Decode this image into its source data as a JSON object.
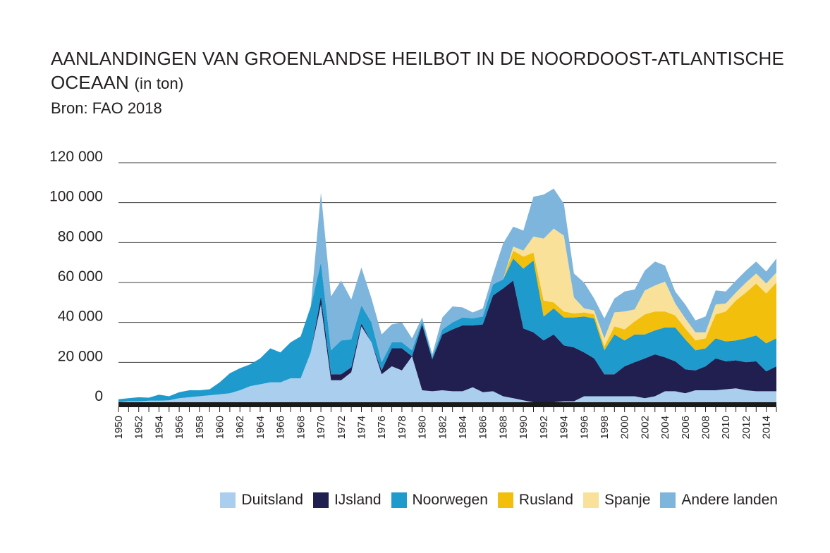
{
  "header": {
    "title_main": "AANLANDINGEN VAN GROENLANDSE HEILBOT IN DE NOORDOOST-ATLANTISCHE OCEAAN",
    "title_unit": "(in ton)",
    "source": "Bron: FAO 2018"
  },
  "legend": {
    "items": [
      {
        "label": "Duitsland",
        "color": "#aacfee"
      },
      {
        "label": "IJsland",
        "color": "#211e50"
      },
      {
        "label": "Noorwegen",
        "color": "#1e9acd"
      },
      {
        "label": "Rusland",
        "color": "#f2bf0d"
      },
      {
        "label": "Spanje",
        "color": "#f9e19a"
      },
      {
        "label": "Andere landen",
        "color": "#7db5dc"
      }
    ]
  },
  "chart_data": {
    "type": "area",
    "stacked": true,
    "title": "AANLANDINGEN VAN GROENLANDSE HEILBOT IN DE NOORDOOST-ATLANTISCHE OCEAAN (in ton)",
    "xlabel": "",
    "ylabel": "",
    "ylim": [
      0,
      120000
    ],
    "yticks": [
      0,
      20000,
      40000,
      60000,
      80000,
      100000,
      120000
    ],
    "ytick_labels": [
      "0",
      "20 000",
      "40 000",
      "60 000",
      "80 000",
      "100 000",
      "120 000"
    ],
    "xtick_labels": [
      "1950",
      "1952",
      "1954",
      "1956",
      "1958",
      "1960",
      "1962",
      "1964",
      "1966",
      "1968",
      "1970",
      "1972",
      "1974",
      "1976",
      "1978",
      "1980",
      "1982",
      "1984",
      "1986",
      "1988",
      "1990",
      "1992",
      "1994",
      "1996",
      "1998",
      "2000",
      "2002",
      "2004",
      "2006",
      "2008",
      "2010",
      "2012",
      "2014"
    ],
    "grid": true,
    "legend_position": "bottom-right",
    "x": [
      1950,
      1951,
      1952,
      1953,
      1954,
      1955,
      1956,
      1957,
      1958,
      1959,
      1960,
      1961,
      1962,
      1963,
      1964,
      1965,
      1966,
      1967,
      1968,
      1969,
      1970,
      1971,
      1972,
      1973,
      1974,
      1975,
      1976,
      1977,
      1978,
      1979,
      1980,
      1981,
      1982,
      1983,
      1984,
      1985,
      1986,
      1987,
      1988,
      1989,
      1990,
      1991,
      1992,
      1993,
      1994,
      1995,
      1996,
      1997,
      1998,
      1999,
      2000,
      2001,
      2002,
      2003,
      2004,
      2005,
      2006,
      2007,
      2008,
      2009,
      2010,
      2011,
      2012,
      2013,
      2014,
      2015
    ],
    "series": [
      {
        "name": "Duitsland",
        "color": "#aacfee",
        "values": [
          0,
          500,
          500,
          800,
          800,
          1000,
          2000,
          2500,
          3000,
          3500,
          4000,
          4500,
          6000,
          8000,
          9000,
          10000,
          10000,
          12000,
          12000,
          25000,
          49000,
          11000,
          11000,
          15000,
          38000,
          30000,
          14000,
          18000,
          16000,
          23000,
          6000,
          5500,
          6000,
          5500,
          5500,
          7500,
          5000,
          5500,
          3000,
          2000,
          1000,
          0,
          0,
          0,
          500,
          500,
          3000,
          3000,
          3000,
          3000,
          3000,
          3000,
          2000,
          3000,
          5500,
          5500,
          4500,
          6000,
          6000,
          6000,
          6500,
          7000,
          6000,
          5500,
          5500,
          5500
        ]
      },
      {
        "name": "IJsland",
        "color": "#211e50",
        "values": [
          0,
          0,
          0,
          0,
          0,
          0,
          0,
          0,
          0,
          0,
          0,
          0,
          0,
          0,
          0,
          0,
          0,
          0,
          0,
          0,
          4000,
          3000,
          3000,
          2500,
          1500,
          0,
          2000,
          9000,
          11000,
          0,
          33000,
          16000,
          28000,
          31000,
          33000,
          31000,
          34000,
          48000,
          54000,
          59000,
          36000,
          35000,
          31000,
          34000,
          28000,
          27000,
          22000,
          19000,
          11000,
          11000,
          15000,
          17000,
          20000,
          21000,
          17000,
          15000,
          12000,
          10000,
          12000,
          16000,
          14000,
          14000,
          14000,
          15000,
          10000,
          12500
        ]
      },
      {
        "name": "Noorwegen",
        "color": "#1e9acd",
        "values": [
          1500,
          1500,
          2000,
          1500,
          3000,
          2000,
          3000,
          3500,
          3000,
          3000,
          6000,
          10000,
          11000,
          11000,
          13000,
          17000,
          15000,
          18000,
          21000,
          23000,
          17000,
          12000,
          17000,
          14000,
          9000,
          10000,
          4000,
          3000,
          3000,
          3000,
          1500,
          1000,
          2500,
          3500,
          4000,
          3500,
          4000,
          5500,
          4500,
          11000,
          30000,
          36000,
          12000,
          13000,
          14000,
          15000,
          18000,
          20000,
          12000,
          20000,
          13000,
          14000,
          12000,
          12000,
          15000,
          17000,
          15000,
          10000,
          9000,
          10000,
          10000,
          10000,
          12000,
          13000,
          14000,
          14000
        ]
      },
      {
        "name": "Rusland",
        "color": "#f2bf0d",
        "values": [
          0,
          0,
          0,
          0,
          0,
          0,
          0,
          0,
          0,
          0,
          0,
          0,
          0,
          0,
          0,
          0,
          0,
          0,
          0,
          0,
          0,
          0,
          0,
          0,
          0,
          0,
          0,
          0,
          0,
          0,
          0,
          0,
          0,
          0,
          0,
          0,
          0,
          0,
          0,
          4000,
          6000,
          4000,
          8000,
          3000,
          3000,
          2000,
          2000,
          2000,
          2000,
          4000,
          5500,
          6500,
          10000,
          9500,
          8000,
          6000,
          5500,
          5000,
          5000,
          12000,
          15000,
          20000,
          23000,
          26000,
          25000,
          28000
        ]
      },
      {
        "name": "Spanje",
        "color": "#f9e19a",
        "values": [
          0,
          0,
          0,
          0,
          0,
          0,
          0,
          0,
          0,
          0,
          0,
          0,
          0,
          0,
          0,
          0,
          0,
          0,
          0,
          0,
          0,
          0,
          0,
          0,
          0,
          0,
          0,
          0,
          0,
          0,
          0,
          0,
          0,
          0,
          0,
          0,
          0,
          0,
          0,
          2000,
          3000,
          8000,
          31000,
          37000,
          38000,
          8000,
          2000,
          2000,
          4000,
          7000,
          9000,
          6000,
          12000,
          13000,
          15000,
          6000,
          5000,
          4000,
          3000,
          5000,
          4000,
          4000,
          5000,
          5000,
          5000,
          5000
        ]
      },
      {
        "name": "Andere landen",
        "color": "#7db5dc",
        "values": [
          0,
          0,
          0,
          0,
          0,
          0,
          0,
          0,
          0,
          0,
          0,
          0,
          0,
          0,
          0,
          0,
          0,
          0,
          0,
          0,
          35000,
          27000,
          30000,
          20000,
          19000,
          12000,
          14000,
          9000,
          10000,
          6000,
          2000,
          1500,
          6000,
          8000,
          5000,
          3000,
          4000,
          5000,
          18000,
          10000,
          10000,
          20000,
          22000,
          20000,
          16000,
          12000,
          13000,
          6000,
          10000,
          7000,
          10000,
          10000,
          10000,
          12000,
          8000,
          6000,
          7000,
          6000,
          8000,
          7000,
          6000,
          6000,
          6000,
          6000,
          6000,
          7000
        ]
      }
    ]
  }
}
